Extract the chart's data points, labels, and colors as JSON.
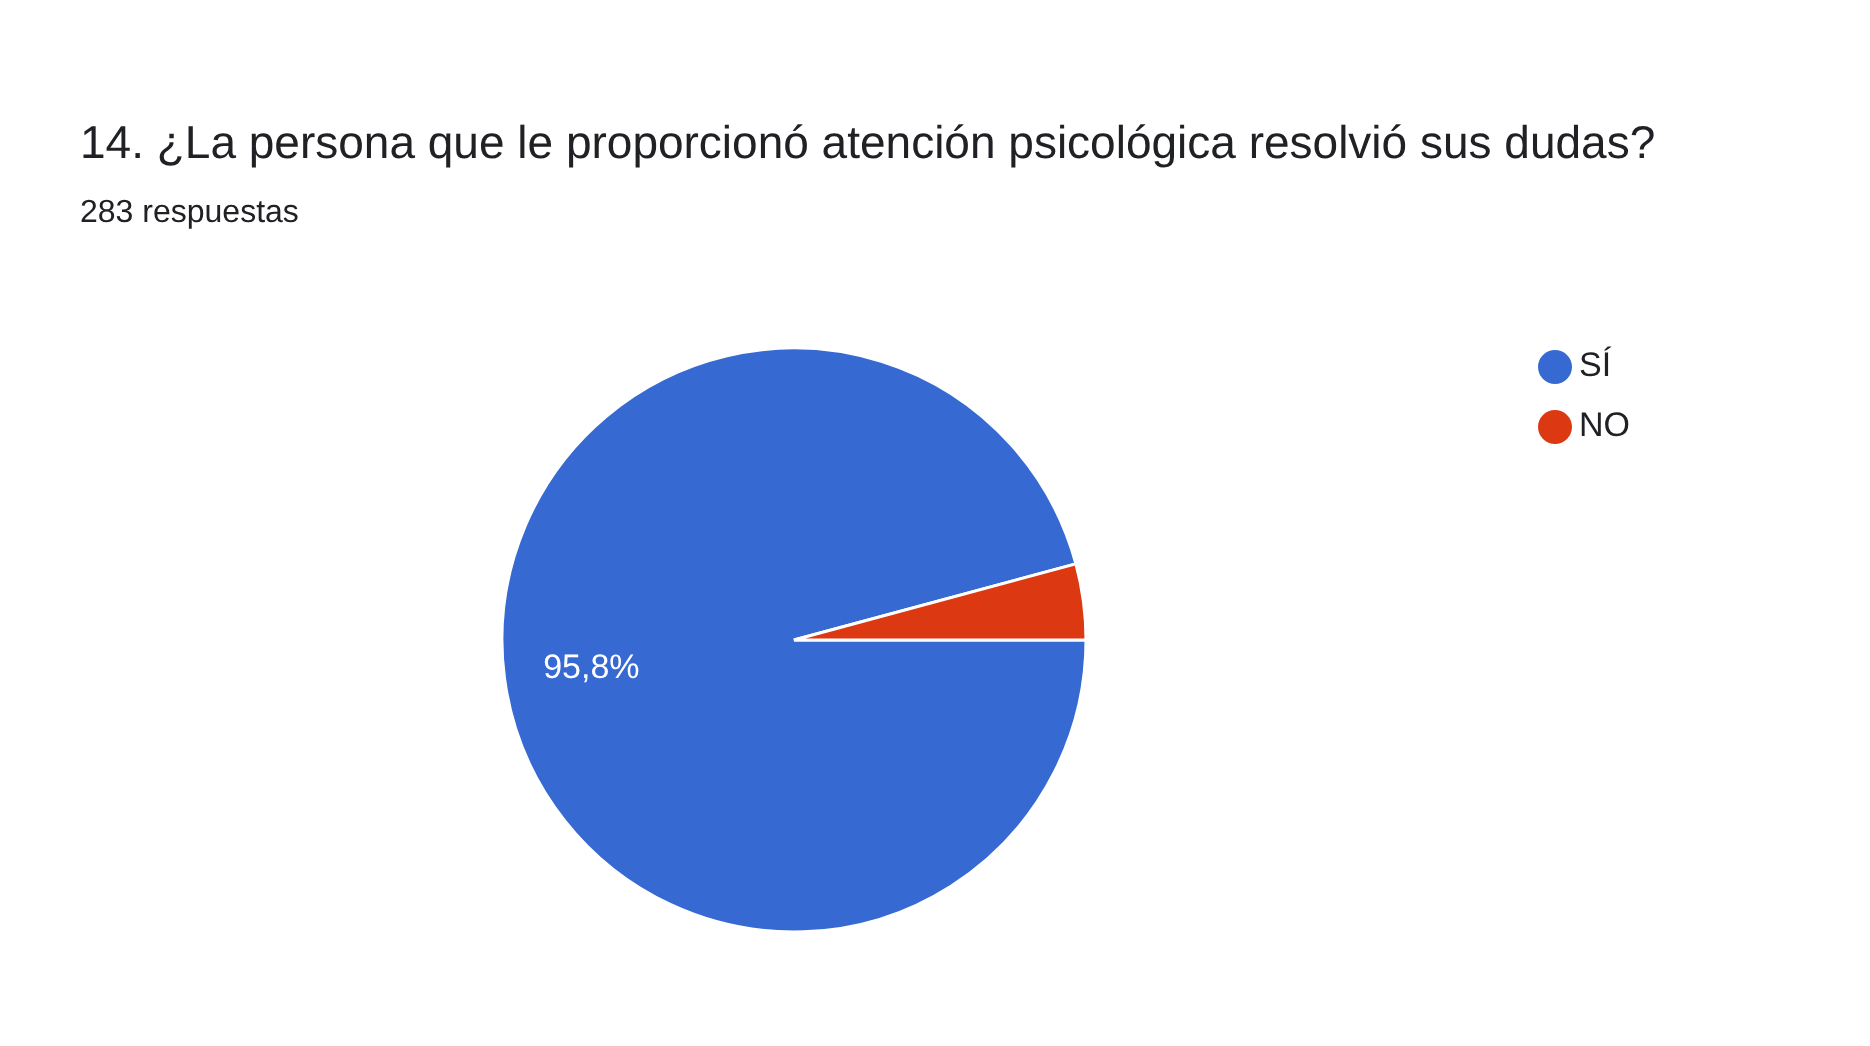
{
  "chart_data": {
    "type": "pie",
    "title": "14. ¿La persona que le proporcionó atención psicológica resolvió sus dudas?",
    "subtitle": "283 respuestas",
    "categories": [
      "SÍ",
      "NO"
    ],
    "values": [
      95.8,
      4.2
    ],
    "colors": [
      "#3669d2",
      "#dc3912"
    ],
    "value_labels": [
      "95,8%",
      null
    ],
    "legend": "top right"
  }
}
